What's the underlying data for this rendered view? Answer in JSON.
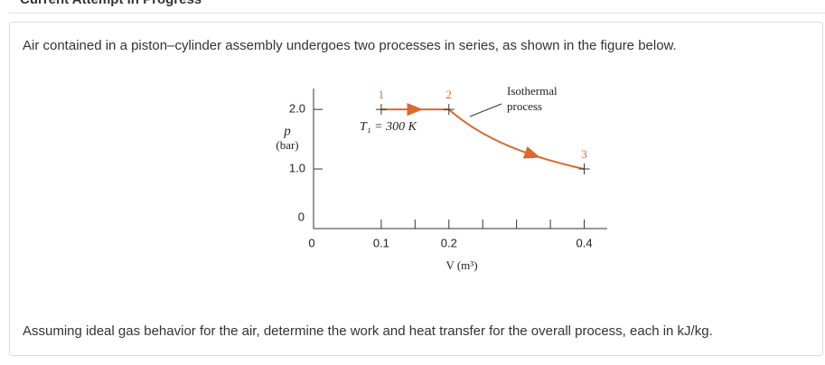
{
  "header": {
    "title": "Current Attempt in Progress"
  },
  "question": {
    "intro": "Air contained in a piston–cylinder assembly undergoes two processes in series, as shown in the figure below.",
    "prompt": "Assuming ideal gas behavior for the air, determine the work and heat transfer for the overall process, each in kJ/kg."
  },
  "figure": {
    "y_label": "p",
    "y_unit": "(bar)",
    "x_label": "V (m³)",
    "xlim": [
      0,
      0.45
    ],
    "ylim": [
      0,
      2.35
    ],
    "xticks": [
      0,
      0.1,
      0.2,
      0.4
    ],
    "yticks": [
      0,
      {
        "value": 2,
        "label": "2.0"
      },
      {
        "value": 1,
        "label": "1.0"
      }
    ],
    "minor_xticks": [
      0.15,
      0.25,
      0.3,
      0.35
    ],
    "color": "#d9692f",
    "points": [
      {
        "label": "1",
        "x": 0.1,
        "y": 2
      },
      {
        "label": "2",
        "x": 0.2,
        "y": 2
      },
      {
        "label": "3",
        "x": 0.4,
        "y": 1
      }
    ],
    "temperature_label": "T₁ = 300 K",
    "curve_label": [
      "Isothermal",
      "process"
    ]
  }
}
